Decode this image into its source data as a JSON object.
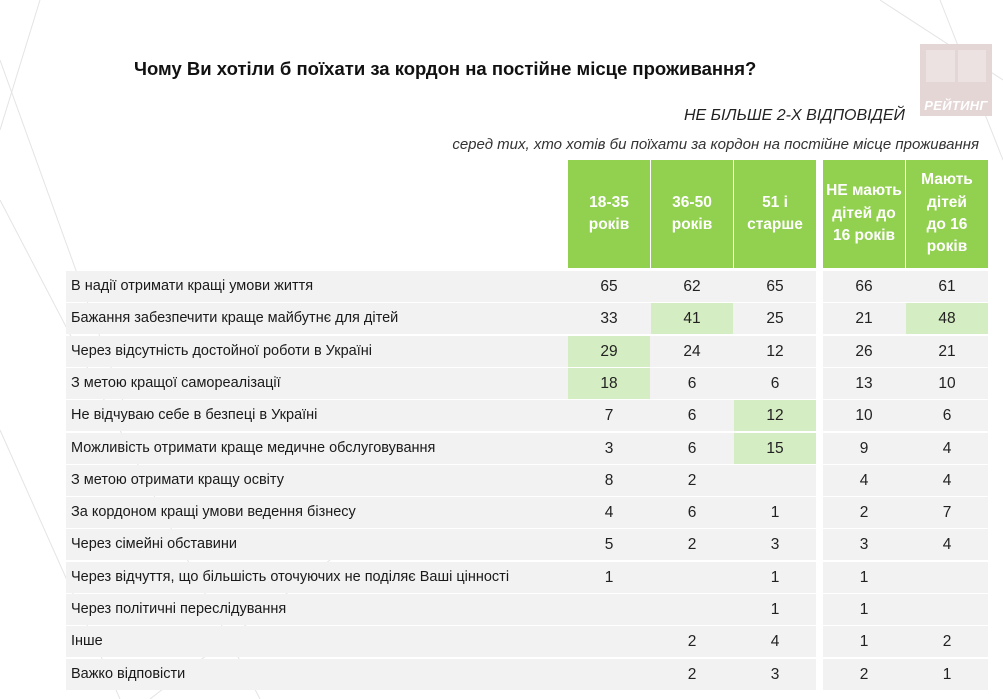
{
  "title": "Чому Ви хотіли б поїхати за кордон на постійне місце проживання?",
  "logo_text": "РЕЙТИНГ",
  "note_max_answers": "НЕ БІЛЬШЕ 2-Х ВІДПОВІДЕЙ",
  "note_base": "серед тих, хто хотів би поїхати за кордон на постійне місце проживання",
  "colors": {
    "header_green": "#92d050",
    "highlight_green": "#d5edc2",
    "row_band": "#f2f2f2"
  },
  "columns": [
    {
      "lines": [
        "18-35",
        "років"
      ]
    },
    {
      "lines": [
        "36-50",
        "років"
      ]
    },
    {
      "lines": [
        "51 і",
        "старше"
      ]
    },
    {
      "lines": [
        "НЕ мають",
        "дітей до",
        "16 років"
      ]
    },
    {
      "lines": [
        "Мають",
        "дітей",
        "до 16",
        "років"
      ]
    }
  ],
  "rows": [
    {
      "label": "В надії отримати кращі умови життя",
      "values": [
        "65",
        "62",
        "65",
        "66",
        "61"
      ],
      "highlight": []
    },
    {
      "label": "Бажання забезпечити краще майбутнє для дітей",
      "values": [
        "33",
        "41",
        "25",
        "21",
        "48"
      ],
      "highlight": [
        1,
        4
      ]
    },
    {
      "label": "Через відсутність достойної роботи в Україні",
      "values": [
        "29",
        "24",
        "12",
        "26",
        "21"
      ],
      "highlight": [
        0
      ]
    },
    {
      "label": "З метою кращої самореалізації",
      "values": [
        "18",
        "6",
        "6",
        "13",
        "10"
      ],
      "highlight": [
        0
      ]
    },
    {
      "label": "Не відчуваю себе в безпеці в Україні",
      "values": [
        "7",
        "6",
        "12",
        "10",
        "6"
      ],
      "highlight": [
        2
      ]
    },
    {
      "label": "Можливість отримати краще медичне обслуговування",
      "values": [
        "3",
        "6",
        "15",
        "9",
        "4"
      ],
      "highlight": [
        2
      ]
    },
    {
      "label": "З метою отримати кращу освіту",
      "values": [
        "8",
        "2",
        "",
        "4",
        "4"
      ],
      "highlight": []
    },
    {
      "label": "За кордоном кращі умови ведення бізнесу",
      "values": [
        "4",
        "6",
        "1",
        "2",
        "7"
      ],
      "highlight": []
    },
    {
      "label": "Через сімейні обставини",
      "values": [
        "5",
        "2",
        "3",
        "3",
        "4"
      ],
      "highlight": []
    },
    {
      "label": "Через відчуття, що більшість оточуючих не поділяє Ваші цінності",
      "values": [
        "1",
        "",
        "1",
        "1",
        ""
      ],
      "highlight": []
    },
    {
      "label": "Через політичні переслідування",
      "values": [
        "",
        "",
        "1",
        "1",
        ""
      ],
      "highlight": []
    },
    {
      "label": "Інше",
      "values": [
        "",
        "2",
        "4",
        "1",
        "2"
      ],
      "highlight": []
    },
    {
      "label": "Важко відповісти",
      "values": [
        "",
        "2",
        "3",
        "2",
        "1"
      ],
      "highlight": []
    }
  ]
}
